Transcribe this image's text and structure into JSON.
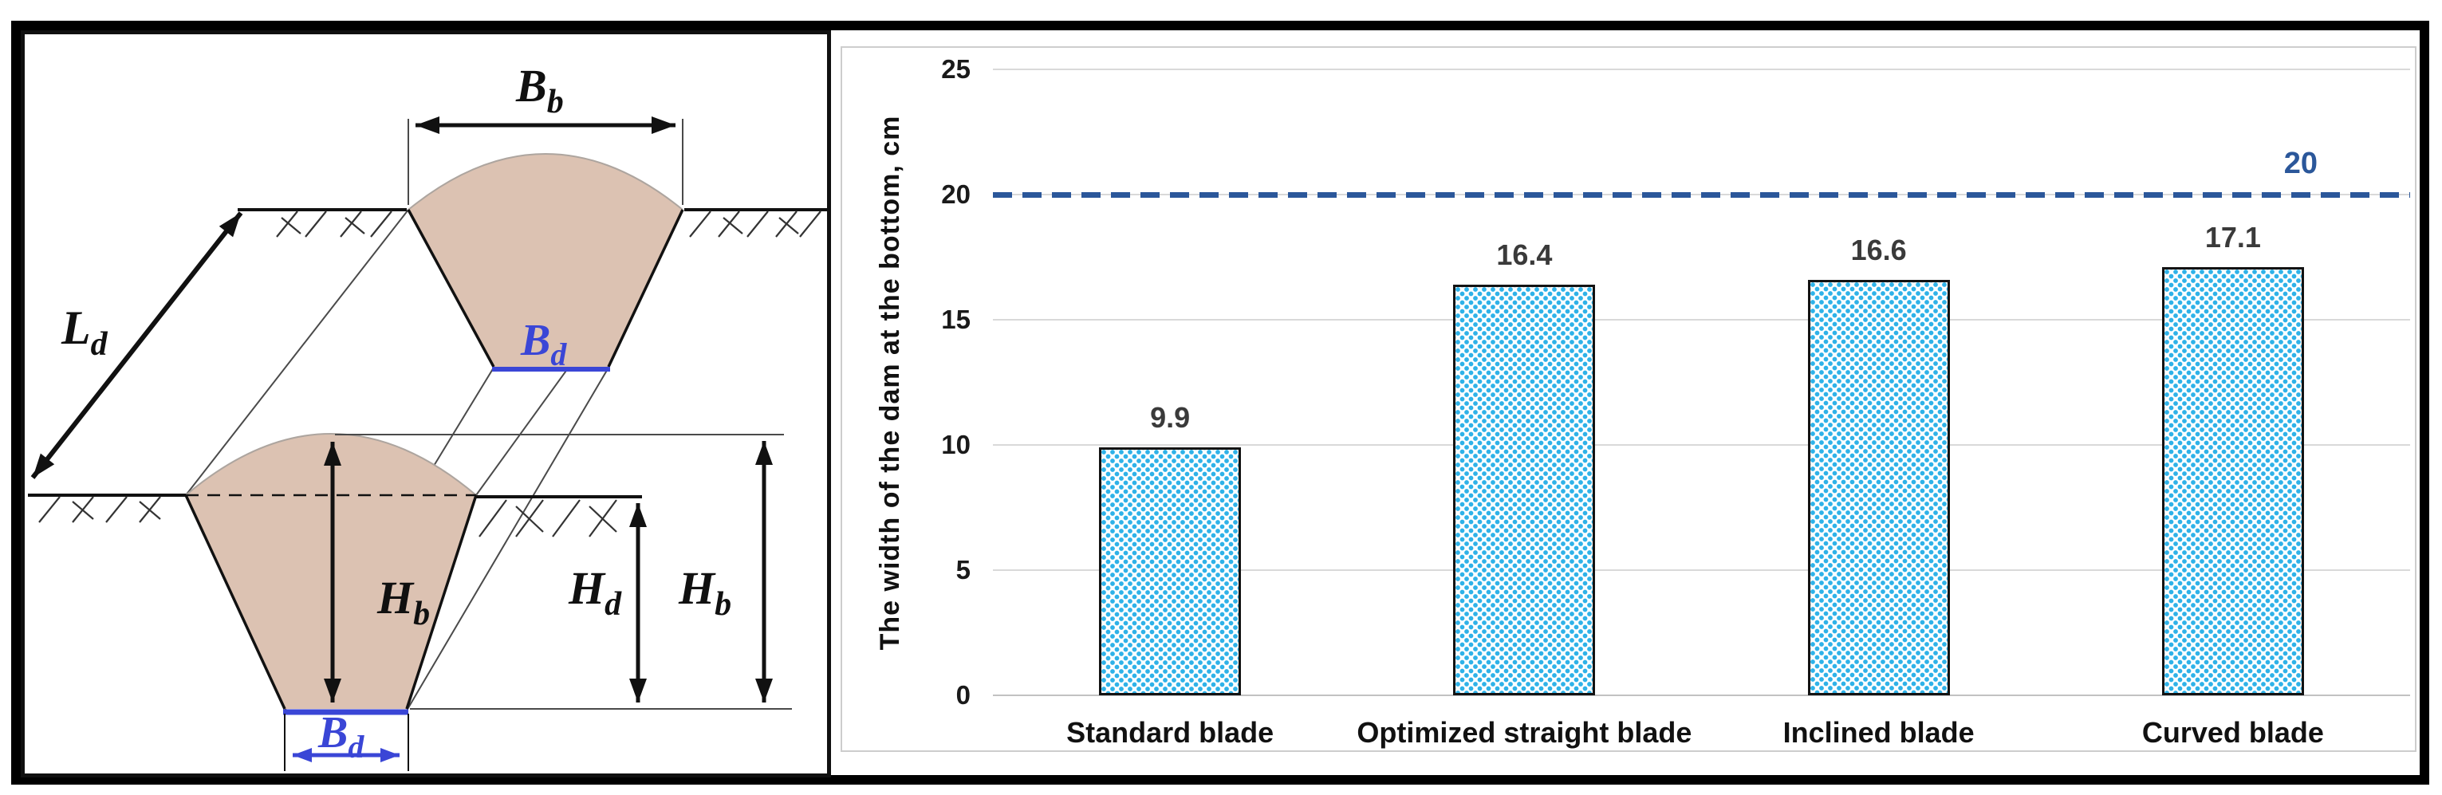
{
  "chart_data": {
    "type": "bar",
    "title": "",
    "categories": [
      "Standard blade",
      "Optimized straight blade",
      "Inclined blade",
      "Curved blade"
    ],
    "values": [
      9.9,
      16.4,
      16.6,
      17.1
    ],
    "data_labels": [
      "9.9",
      "16.4",
      "16.6",
      "17.1"
    ],
    "xlabel": "",
    "ylabel": "The width of the dam at the bottom, cm",
    "ylim": [
      0,
      25
    ],
    "yticks": [
      0,
      5,
      10,
      15,
      20,
      25
    ],
    "grid": "horizontal",
    "legend": "none",
    "reference_line": {
      "value": 20,
      "label": "20",
      "style": "dashed"
    },
    "colors": {
      "bar_dot": "#2fb2e8",
      "bar_background": "#ffffff",
      "bar_border": "#131313",
      "reference_blue": "#2b579a",
      "gridline": "#d9d9d9",
      "baseline": "#c2c2c2"
    }
  },
  "diagram": {
    "labels": {
      "Ld": {
        "main": "L",
        "sub": "d"
      },
      "Bb": {
        "main": "B",
        "sub": "b"
      },
      "Bd_upper": {
        "main": "B",
        "sub": "d"
      },
      "Hb_inner": {
        "main": "H",
        "sub": "b"
      },
      "Hd": {
        "main": "H",
        "sub": "d"
      },
      "Hb_right": {
        "main": "H",
        "sub": "b"
      },
      "Bd_lower": {
        "main": "B",
        "sub": "d"
      }
    },
    "colors": {
      "soil_fill": "#dcc2b2",
      "dimension_blue": "#3a46d6",
      "line_black": "#111111"
    }
  }
}
